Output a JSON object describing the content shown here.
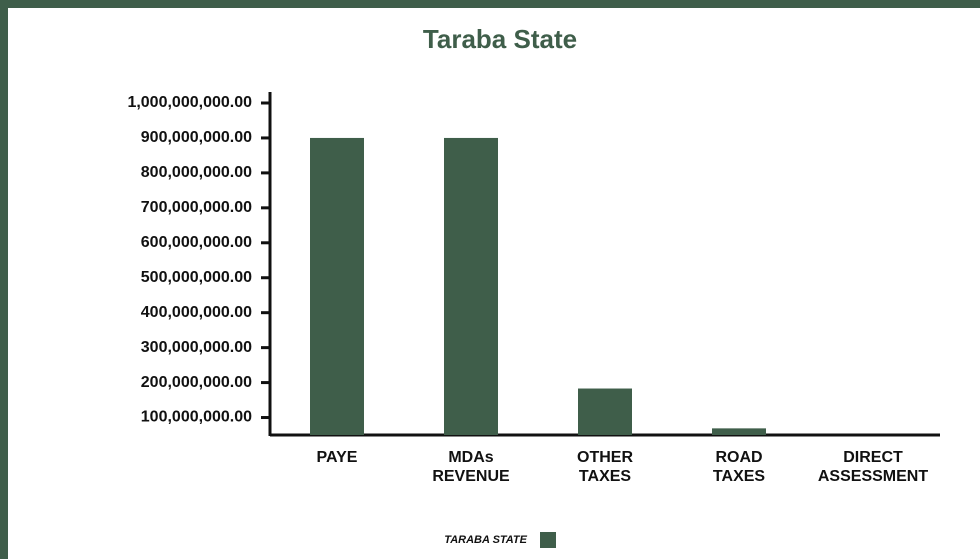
{
  "chart_data": {
    "type": "bar",
    "title": "Taraba State",
    "categories": [
      "PAYE",
      "MDAs REVENUE",
      "OTHER TAXES",
      "ROAD TAXES",
      "DIRECT ASSESSMENT"
    ],
    "series": [
      {
        "name": "TARABA STATE",
        "color": "#3f5e4a",
        "values": [
          900000000,
          900000000,
          183000000,
          69000000,
          0
        ]
      }
    ],
    "ylim": [
      50000000,
      1000000000
    ],
    "yticks": [
      {
        "value": 100000000,
        "label": "100,000,000.00"
      },
      {
        "value": 200000000,
        "label": "200,000,000.00"
      },
      {
        "value": 300000000,
        "label": "300,000,000.00"
      },
      {
        "value": 400000000,
        "label": "400,000,000.00"
      },
      {
        "value": 500000000,
        "label": "500,000,000.00"
      },
      {
        "value": 600000000,
        "label": "600,000,000.00"
      },
      {
        "value": 700000000,
        "label": "700,000,000.00"
      },
      {
        "value": 800000000,
        "label": "800,000,000.00"
      },
      {
        "value": 900000000,
        "label": "900,000,000.00"
      },
      {
        "value": 1000000000,
        "label": "1,000,000,000.00"
      }
    ],
    "grid": false
  }
}
